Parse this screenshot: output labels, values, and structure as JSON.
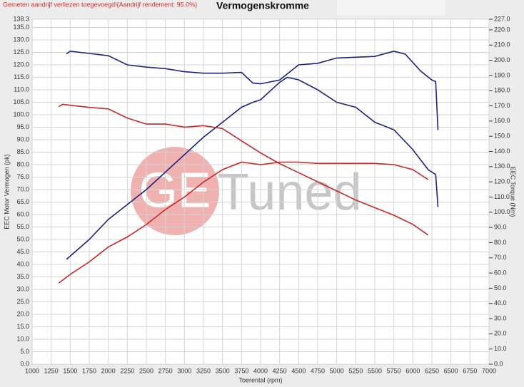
{
  "chart_data": {
    "type": "line",
    "title": "Vermogenskromme",
    "subtitle": "Gemeten aandrijf verliezen toegevoegd!(Aandrijf rendement: 95.0%)",
    "x_label": "Toerental (rpm)",
    "y_label": "EEC Motor Vermogen (pk)",
    "y2_label": "EEC Torque (Nm)",
    "watermark_logo": "GE",
    "watermark_text": "Tuned",
    "grid": true,
    "xlim": [
      1000,
      7000
    ],
    "xticks": [
      1000,
      1250,
      1500,
      1750,
      2000,
      2250,
      2500,
      2750,
      3000,
      3250,
      3500,
      3750,
      4000,
      4250,
      4500,
      4750,
      5000,
      5250,
      5500,
      5750,
      6000,
      6250,
      6500,
      6750,
      7000
    ],
    "ylim": [
      0,
      138.3
    ],
    "yticks": [
      {
        "value": 0,
        "label": "0.0"
      },
      {
        "value": 5,
        "label": "5.0"
      },
      {
        "value": 10,
        "label": "10.0"
      },
      {
        "value": 15,
        "label": "15.0"
      },
      {
        "value": 20,
        "label": "20.0"
      },
      {
        "value": 25,
        "label": "25.0"
      },
      {
        "value": 30,
        "label": "30.0"
      },
      {
        "value": 35,
        "label": "35.0"
      },
      {
        "value": 40,
        "label": "40.0"
      },
      {
        "value": 45,
        "label": "45.0"
      },
      {
        "value": 50,
        "label": "50.0"
      },
      {
        "value": 55,
        "label": "55.0"
      },
      {
        "value": 60,
        "label": "60.0"
      },
      {
        "value": 65,
        "label": "65.0"
      },
      {
        "value": 70,
        "label": "70.0"
      },
      {
        "value": 75,
        "label": "75.0"
      },
      {
        "value": 80,
        "label": "80.0"
      },
      {
        "value": 85,
        "label": "85.0"
      },
      {
        "value": 90,
        "label": "90.0"
      },
      {
        "value": 95,
        "label": "95.0"
      },
      {
        "value": 100,
        "label": "100.0"
      },
      {
        "value": 105,
        "label": "105.0"
      },
      {
        "value": 110,
        "label": "110.0"
      },
      {
        "value": 115,
        "label": "115.0"
      },
      {
        "value": 120,
        "label": "120.0"
      },
      {
        "value": 125,
        "label": "125.0"
      },
      {
        "value": 130,
        "label": "130.0"
      },
      {
        "value": 135,
        "label": "135.0"
      },
      {
        "value": 138.3,
        "label": "138.3"
      }
    ],
    "y2lim": [
      0,
      227
    ],
    "y2ticks": [
      {
        "value": 0,
        "label": "0.0"
      },
      {
        "value": 10,
        "label": "10.0"
      },
      {
        "value": 20,
        "label": "20.0"
      },
      {
        "value": 30,
        "label": "30.0"
      },
      {
        "value": 40,
        "label": "40.0"
      },
      {
        "value": 50,
        "label": "50.0"
      },
      {
        "value": 60,
        "label": "60.0"
      },
      {
        "value": 70,
        "label": "70.0"
      },
      {
        "value": 80,
        "label": "80.0"
      },
      {
        "value": 90,
        "label": "90.0"
      },
      {
        "value": 100,
        "label": "100.0"
      },
      {
        "value": 110,
        "label": "110.0"
      },
      {
        "value": 120,
        "label": "120.0"
      },
      {
        "value": 130,
        "label": "130.0"
      },
      {
        "value": 140,
        "label": "140.0"
      },
      {
        "value": 150,
        "label": "150.0"
      },
      {
        "value": 160,
        "label": "160.0"
      },
      {
        "value": 170,
        "label": "170.0"
      },
      {
        "value": 180,
        "label": "180.0"
      },
      {
        "value": 190,
        "label": "190.0"
      },
      {
        "value": 200,
        "label": "200.0"
      },
      {
        "value": 210,
        "label": "210.0"
      },
      {
        "value": 220,
        "label": "220.0"
      },
      {
        "value": 227,
        "label": "227.0"
      }
    ],
    "series": [
      {
        "color": "#1a237e",
        "axis": "y",
        "x": [
          1450,
          1750,
          2000,
          2250,
          2500,
          2750,
          3000,
          3250,
          3500,
          3750,
          3900,
          4000,
          4250,
          4350,
          4500,
          4750,
          5000,
          5250,
          5500,
          5750,
          6000,
          6200,
          6300,
          6330
        ],
        "values": [
          42,
          50,
          58,
          64,
          70,
          77,
          84,
          91,
          97,
          103,
          105,
          106,
          113,
          115,
          114,
          110,
          105,
          103,
          97,
          94,
          86,
          78,
          76,
          63
        ]
      },
      {
        "color": "#1a237e",
        "axis": "y2",
        "x": [
          1450,
          1500,
          1750,
          2000,
          2250,
          2500,
          2750,
          3000,
          3250,
          3500,
          3750,
          3900,
          4000,
          4250,
          4500,
          4750,
          5000,
          5250,
          5500,
          5750,
          5900,
          6100,
          6250,
          6300,
          6330
        ],
        "values": [
          204.2,
          206,
          204.5,
          203,
          197,
          195.5,
          194.5,
          192.5,
          191.5,
          191.5,
          192,
          185,
          184.5,
          187,
          197,
          198,
          201.5,
          202,
          202.5,
          206,
          204,
          193,
          187,
          186,
          154
        ]
      },
      {
        "color": "#c62828",
        "axis": "y",
        "x": [
          1350,
          1500,
          1750,
          2000,
          2250,
          2500,
          2750,
          3000,
          3250,
          3500,
          3750,
          4000,
          4250,
          4500,
          4750,
          5000,
          5250,
          5500,
          5750,
          6000,
          6200
        ],
        "values": [
          32.5,
          36,
          41,
          47,
          51,
          56,
          62,
          67,
          73,
          78,
          81,
          80,
          81,
          81,
          80.5,
          80.5,
          80.5,
          80.5,
          80,
          78,
          74
        ]
      },
      {
        "color": "#c62828",
        "axis": "y2",
        "x": [
          1350,
          1400,
          1750,
          2000,
          2250,
          2500,
          2750,
          3000,
          3250,
          3500,
          3750,
          4000,
          4250,
          4500,
          4750,
          5000,
          5250,
          5500,
          5750,
          6000,
          6200
        ],
        "values": [
          169.5,
          171,
          169,
          168,
          162,
          158,
          158,
          156,
          157,
          155,
          147,
          139,
          132,
          126,
          120,
          114,
          108,
          103,
          98,
          92,
          85
        ]
      }
    ]
  }
}
